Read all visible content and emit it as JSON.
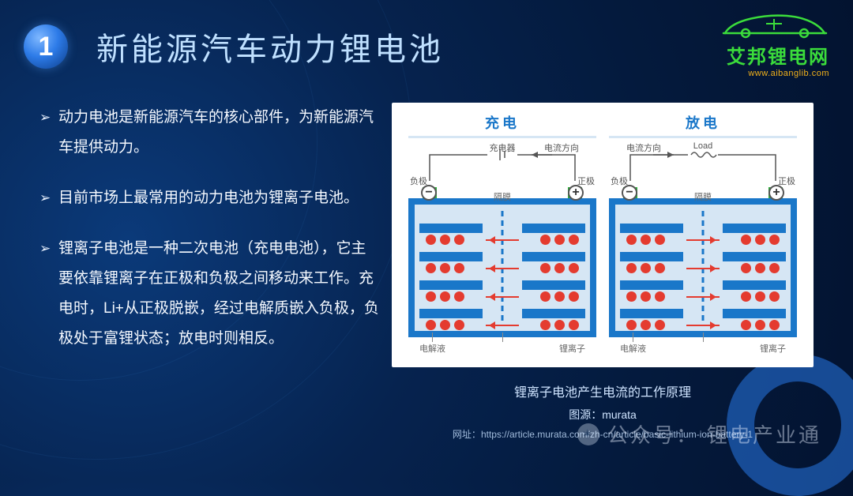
{
  "header": {
    "number": "1",
    "title": "新能源汽车动力锂电池",
    "logo_text": "艾邦锂电网",
    "logo_url": "www.aibanglib.com",
    "logo_color": "#3bdc3b",
    "logo_url_color": "#f2b11a"
  },
  "bullets": [
    "动力电池是新能源汽车的核心部件，为新能源汽车提供动力。",
    "目前市场上最常用的动力电池为锂离子电池。",
    "锂离子电池是一种二次电池（充电电池），它主要依靠锂离子在正极和负极之间移动来工作。充电时，Li+从正极脱嵌，经过电解质嵌入负极，负极处于富锂状态；放电时则相反。"
  ],
  "diagram": {
    "panels": [
      {
        "title": "充电",
        "top_device_label": "充电器",
        "current_label": "电流方向",
        "anode_label": "负极",
        "cathode_label": "正极",
        "separator_label": "隔膜",
        "neg_sign": "−",
        "pos_sign": "+",
        "electrolyte_label": "电解液",
        "ion_label": "锂离子",
        "arrow_dir": "left",
        "device_type": "charger"
      },
      {
        "title": "放电",
        "top_device_label": "Load",
        "current_label": "电流方向",
        "anode_label": "负极",
        "cathode_label": "正极",
        "separator_label": "隔膜",
        "neg_sign": "−",
        "pos_sign": "+",
        "electrolyte_label": "电解液",
        "ion_label": "锂离子",
        "arrow_dir": "right",
        "device_type": "load"
      }
    ],
    "colors": {
      "cell_outer": "#1a77c9",
      "cell_inner": "#d6e6f4",
      "terminal": "#2eaf3b",
      "ion": "#e43b2f",
      "title": "#1a77c9"
    },
    "shelf_y": [
      14,
      50,
      86,
      122
    ],
    "caption": "锂离子电池产生电流的工作原理",
    "source_prefix": "图源：",
    "source": "murata",
    "url_prefix": "网址：",
    "url": "https://article.murata.com/zh-cn/article/basic-lithium-ion-battery-1"
  },
  "watermark": {
    "prefix": "公众号：",
    "name": "锂电产业通"
  }
}
